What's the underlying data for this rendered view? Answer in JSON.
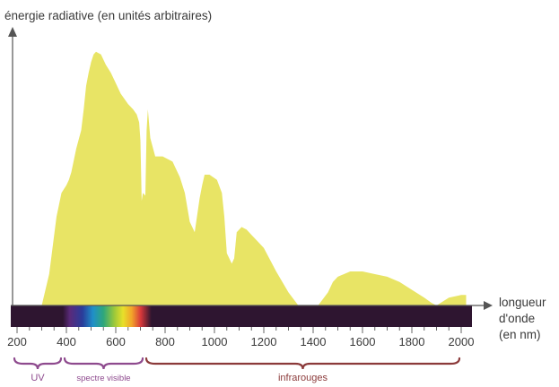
{
  "chart_data": {
    "type": "area",
    "ylabel": "énergie radiative (en unités arbitraires)",
    "xlabel_lines": [
      "longueur",
      "d'onde",
      "(en nm)"
    ],
    "xlim": [
      200,
      2000
    ],
    "ylim": [
      0,
      100
    ],
    "x_ticks": [
      200,
      400,
      600,
      800,
      1000,
      1200,
      1400,
      1600,
      1800,
      2000
    ],
    "x_tick_labels": [
      "200",
      "400",
      "600",
      "800",
      "1000",
      "1200",
      "1400",
      "1600",
      "1800",
      "2000"
    ],
    "fill_color": "#e8e465",
    "bands": [
      {
        "label": "UV",
        "start": 200,
        "end": 390,
        "color": "#8e4a8e"
      },
      {
        "label": "spectre visible",
        "start": 400,
        "end": 730,
        "color": "#8e4a8e"
      },
      {
        "label": "infrarouges",
        "start": 750,
        "end": 2000,
        "color": "#8b3a3a"
      }
    ],
    "spectrum_bar": {
      "background": "#2e1530",
      "visible_range": [
        400,
        730
      ]
    },
    "series": [
      {
        "x": [
          300,
          330,
          360,
          380,
          400,
          410,
          420,
          440,
          460,
          470,
          480,
          490,
          500,
          510,
          520,
          540,
          560,
          580,
          600,
          620,
          650,
          670,
          685,
          695,
          700,
          705,
          710,
          720,
          725,
          730,
          740,
          760,
          790,
          830,
          860,
          880,
          900,
          920,
          940,
          950,
          960,
          980,
          1010,
          1030,
          1040,
          1050,
          1060,
          1070,
          1080,
          1090,
          1110,
          1130,
          1150,
          1170,
          1200,
          1250,
          1300,
          1340,
          1360,
          1380,
          1400,
          1420,
          1460,
          1480,
          1500,
          1550,
          1600,
          1650,
          1700,
          1750,
          1800,
          1850,
          1880,
          1900,
          1950,
          2000,
          2020
        ],
        "y": [
          0,
          12,
          34,
          43,
          46,
          48,
          51,
          60,
          67,
          75,
          84,
          89,
          93,
          96,
          97,
          96,
          92,
          89,
          85,
          81,
          77,
          75,
          73,
          70,
          63,
          40,
          43,
          42,
          67,
          75,
          64,
          57,
          57,
          55,
          49,
          43,
          32,
          28,
          41,
          46,
          50,
          50,
          48,
          43,
          34,
          20,
          18,
          16,
          18,
          28,
          30,
          29,
          27,
          25,
          22,
          13,
          5,
          0,
          0,
          0,
          0,
          0,
          5,
          9,
          11,
          13,
          13,
          12,
          11,
          9,
          6,
          3,
          1,
          0,
          3,
          4,
          4
        ]
      }
    ]
  }
}
